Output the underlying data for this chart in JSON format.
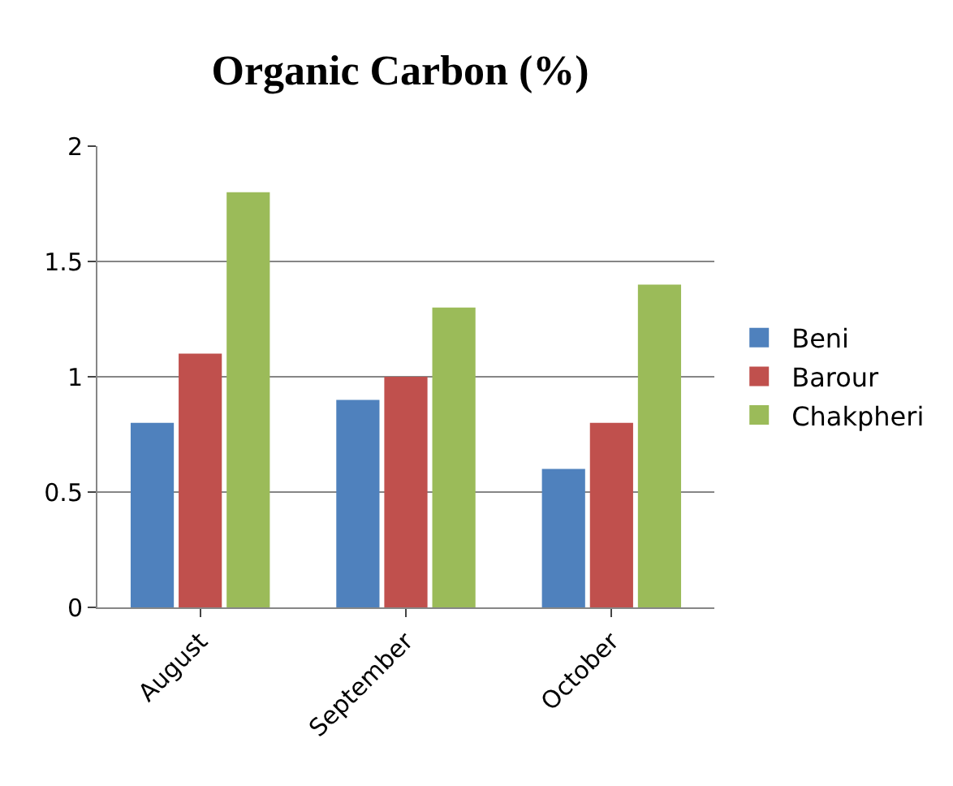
{
  "chart_data": {
    "type": "bar",
    "title": "Organic Carbon (%)",
    "categories": [
      "August",
      "September",
      "October"
    ],
    "series": [
      {
        "name": "Beni",
        "color": "#4f81bd",
        "values": [
          0.8,
          0.9,
          0.6
        ]
      },
      {
        "name": "Barour",
        "color": "#c0504d",
        "values": [
          1.1,
          1.0,
          0.8
        ]
      },
      {
        "name": "Chakpheri",
        "color": "#9bbb59",
        "values": [
          1.8,
          1.3,
          1.4
        ]
      }
    ],
    "ylim": [
      0,
      2
    ],
    "yticks": [
      0,
      0.5,
      1,
      1.5,
      2
    ],
    "grid": "y",
    "legend": "right"
  }
}
